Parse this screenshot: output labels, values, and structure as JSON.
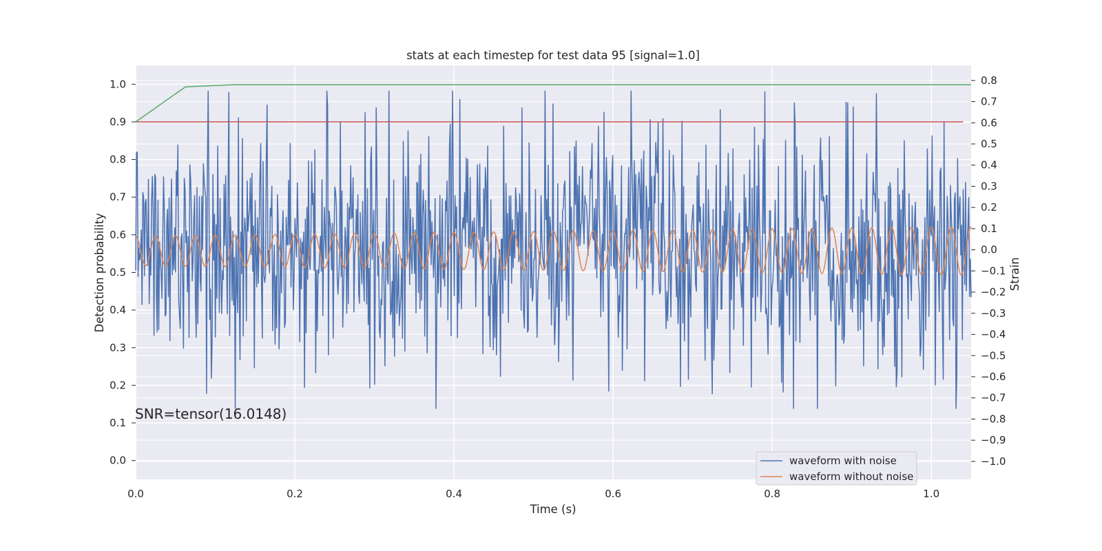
{
  "chart_data": {
    "type": "line",
    "title": "stats at each timestep for test data 95 [signal=1.0]",
    "xlabel": "Time (s)",
    "ylabel": "Detection probability",
    "y2label": "Strain",
    "xlim": [
      0.0,
      1.05
    ],
    "ylim": [
      -0.05,
      1.05
    ],
    "y2lim": [
      -1.085,
      0.871
    ],
    "grid": true,
    "x_ticks": [
      0.0,
      0.2,
      0.4,
      0.6,
      0.8,
      1.0
    ],
    "x_tick_labels": [
      "0.0",
      "0.2",
      "0.4",
      "0.6",
      "0.8",
      "1.0"
    ],
    "y_ticks": [
      0.0,
      0.1,
      0.2,
      0.3,
      0.4,
      0.5,
      0.6,
      0.7,
      0.8,
      0.9,
      1.0
    ],
    "y_tick_labels": [
      "0.0",
      "0.1",
      "0.2",
      "0.3",
      "0.4",
      "0.5",
      "0.6",
      "0.7",
      "0.8",
      "0.9",
      "1.0"
    ],
    "y2_ticks": [
      -1.0,
      -0.9,
      -0.8,
      -0.7,
      -0.6,
      -0.5,
      -0.4,
      -0.3,
      -0.2,
      -0.1,
      0.0,
      0.1,
      0.2,
      0.3,
      0.4,
      0.5,
      0.6,
      0.7,
      0.8
    ],
    "y2_tick_labels": [
      "−1.0",
      "−0.9",
      "−0.8",
      "−0.7",
      "−0.6",
      "−0.5",
      "−0.4",
      "−0.3",
      "−0.2",
      "−0.1",
      "0.0",
      "0.1",
      "0.2",
      "0.3",
      "0.4",
      "0.5",
      "0.6",
      "0.7",
      "0.8"
    ],
    "annotation": "SNR=tensor(16.0148)",
    "legend": {
      "placement": "lower-right",
      "entries": [
        {
          "label": "waveform with noise",
          "color": "#4c72b0"
        },
        {
          "label": "waveform without noise",
          "color": "#dd8452"
        }
      ]
    },
    "series": [
      {
        "axis": "left",
        "color": "#55a868",
        "x": [
          0.0,
          0.0625,
          0.125,
          0.1875,
          0.25,
          0.3125,
          0.375,
          0.4375,
          0.5,
          0.5625,
          0.625,
          0.6875,
          0.75,
          0.8125,
          0.875,
          0.9375,
          1.0,
          1.05
        ],
        "values": [
          0.9,
          0.993,
          0.999,
          0.999,
          0.999,
          0.999,
          0.999,
          0.999,
          0.999,
          0.999,
          0.999,
          0.999,
          0.999,
          0.999,
          0.999,
          0.999,
          0.999,
          0.999
        ]
      },
      {
        "axis": "left",
        "color": "#c44e52",
        "x": [
          0.0,
          1.04
        ],
        "values": [
          0.9,
          0.9
        ]
      },
      {
        "name": "waveform with noise",
        "axis": "right",
        "color": "#4c72b0",
        "generated": {
          "samples": 1050,
          "x_start": 0.0,
          "x_end": 1.05,
          "std": 0.3,
          "seed": 95,
          "clip": [
            -0.75,
            0.75
          ]
        }
      },
      {
        "name": "waveform without noise",
        "axis": "right",
        "color": "#dd8452",
        "generated": {
          "frequency": 40.0,
          "x_start": 0.0,
          "x_end": 1.05,
          "amplitude_start": 0.07,
          "amplitude_end": 0.115,
          "offset": -0.005
        }
      }
    ]
  }
}
